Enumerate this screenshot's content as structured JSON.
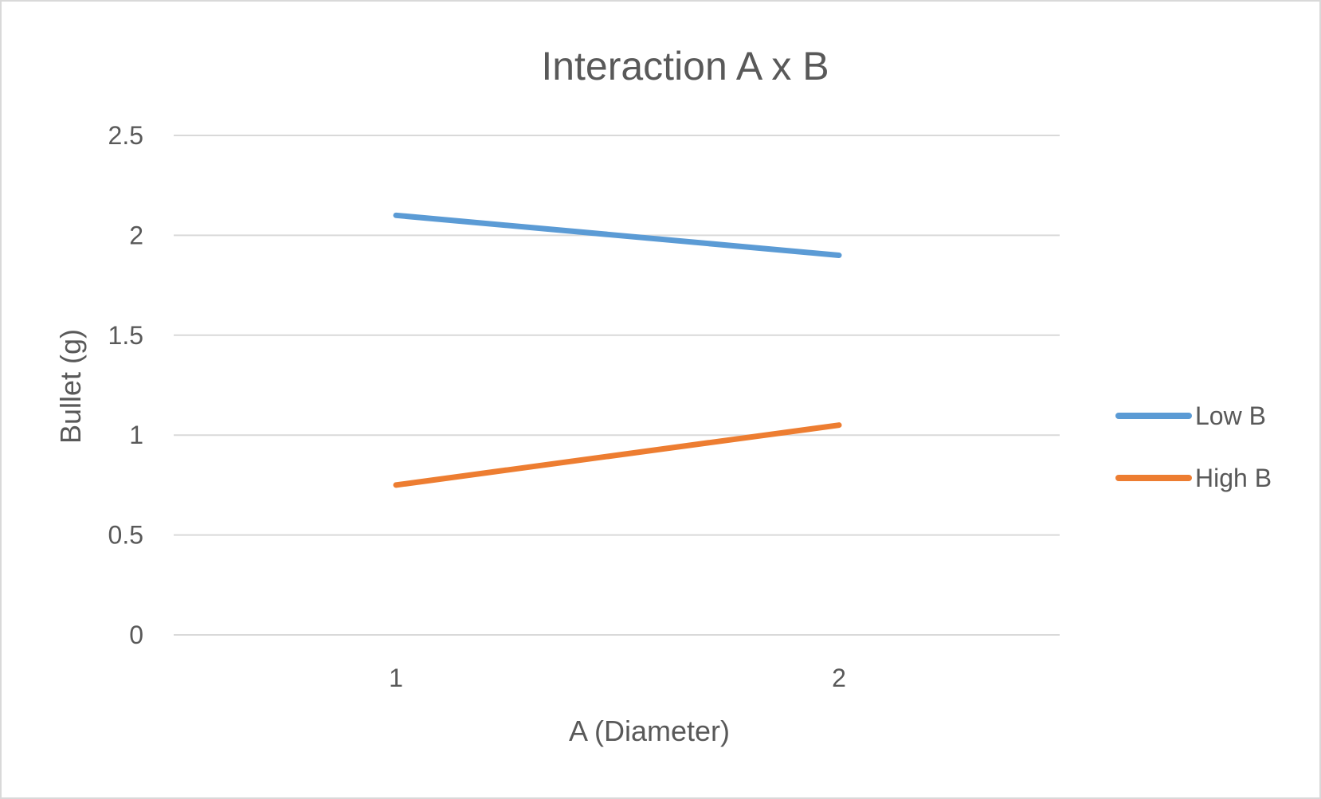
{
  "chart_data": {
    "type": "line",
    "title": "Interaction A x B",
    "xlabel": "A (Diameter)",
    "ylabel": "Bullet (g)",
    "categories": [
      "1",
      "2"
    ],
    "ylim": [
      0,
      2.5
    ],
    "yticks": [
      "0",
      "0.5",
      "1",
      "1.5",
      "2",
      "2.5"
    ],
    "grid": true,
    "legend_position": "right",
    "series": [
      {
        "name": "Low B",
        "values": [
          2.1,
          1.9
        ],
        "color": "#5b9bd5"
      },
      {
        "name": "High B",
        "values": [
          0.75,
          1.05
        ],
        "color": "#ed7d31"
      }
    ]
  },
  "style": {
    "gridline_color": "#d9d9d9",
    "text_color": "#595959"
  }
}
